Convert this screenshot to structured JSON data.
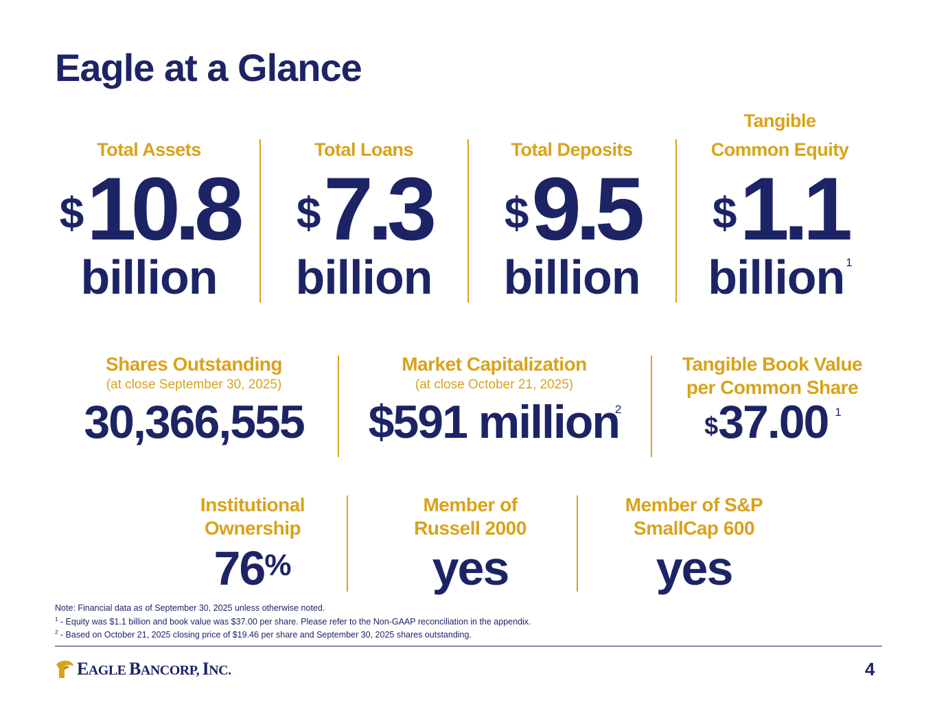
{
  "title": "Eagle at a Glance",
  "row1": [
    {
      "label_line1": "",
      "label_line2": "Total Assets",
      "currency": "$",
      "value": "10.8",
      "unit": "billion",
      "footnote": ""
    },
    {
      "label_line1": "",
      "label_line2": "Total Loans",
      "currency": "$",
      "value": "7.3",
      "unit": "billion",
      "footnote": ""
    },
    {
      "label_line1": "",
      "label_line2": "Total Deposits",
      "currency": "$",
      "value": "9.5",
      "unit": "billion",
      "footnote": ""
    },
    {
      "label_line1": "Tangible",
      "label_line2": "Common Equity",
      "currency": "$",
      "value": "1.1",
      "unit": "billion",
      "footnote": "1"
    }
  ],
  "row2": [
    {
      "label_line1": "Shares Outstanding",
      "label_line2": "(at close September 30, 2025)",
      "currency": "",
      "value": "30,366,555",
      "footnote": ""
    },
    {
      "label_line1": "Market Capitalization",
      "label_line2": "(at close October 21, 2025)",
      "currency": "",
      "value": "$591 million",
      "footnote": "2"
    },
    {
      "label_line1": "Tangible Book Value",
      "label_line2": "per Common Share",
      "currency": "$",
      "value": "37.00",
      "footnote": "1"
    }
  ],
  "row3": [
    {
      "label_line1": "Institutional",
      "label_line2": "Ownership",
      "value": "76",
      "suffix": "%"
    },
    {
      "label_line1": "Member of",
      "label_line2": "Russell 2000",
      "value": "yes",
      "suffix": ""
    },
    {
      "label_line1": "Member of S&P",
      "label_line2": "SmallCap 600",
      "value": "yes",
      "suffix": ""
    }
  ],
  "notes": {
    "main": "Note: Financial data as of September 30, 2025 unless otherwise noted.",
    "fn1_mark": "1",
    "fn1": " - Equity was $1.1 billion and book value was $37.00 per share. Please refer to the Non-GAAP reconciliation in the appendix.",
    "fn2_mark": "2",
    "fn2": " - Based on October 21, 2025 closing price of $19.46 per share and September 30, 2025 shares outstanding."
  },
  "footer": {
    "logo_e": "E",
    "logo_agle": "AGLE ",
    "logo_b": "B",
    "logo_ancorp": "ANCORP, ",
    "logo_i": "I",
    "logo_nc": "NC.",
    "page_number": "4"
  },
  "colors": {
    "navy": "#1d2466",
    "gold": "#d9a21b"
  }
}
